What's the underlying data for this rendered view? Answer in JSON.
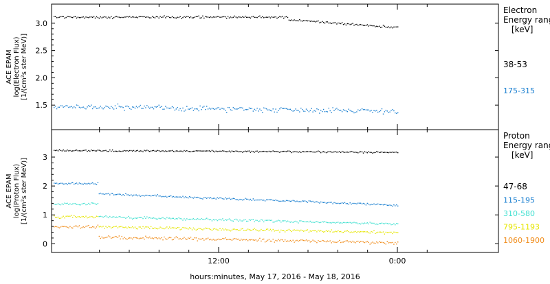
{
  "chart_data": [
    {
      "type": "scatter",
      "ylabel": [
        "ACE EPAM",
        "log(Electron Flux)",
        "[1/(cm²s ster MeV)]"
      ],
      "yticks": [
        1.5,
        2.0,
        2.5,
        3.0
      ],
      "ylim": [
        1.05,
        3.35
      ],
      "legend_title": [
        "Electron",
        "Energy ranges",
        "[keV]"
      ],
      "series": [
        {
          "name": "38-53",
          "color": "#000000",
          "base": 3.12,
          "end": 2.93,
          "noise": 0.03,
          "drop_at": 0.68,
          "drop": 0.05
        },
        {
          "name": "175-315",
          "color": "#1a7fd0",
          "base": 1.48,
          "end": 1.4,
          "noise": 0.07,
          "drop_at": null,
          "drop": 0
        }
      ]
    },
    {
      "type": "scatter",
      "ylabel": [
        "ACE EPAM",
        "log(Proton Flux)",
        "[1/(cm²s ster MeV)]"
      ],
      "yticks": [
        0,
        1,
        2,
        3
      ],
      "ylim": [
        -0.3,
        3.95
      ],
      "legend_title": [
        "Proton",
        "Energy ranges",
        "[keV]"
      ],
      "series": [
        {
          "name": "47-68",
          "color": "#000000",
          "base": 3.25,
          "end": 3.18,
          "noise": 0.04,
          "drop_at": null,
          "drop": 0
        },
        {
          "name": "115-195",
          "color": "#1a7fd0",
          "base": 2.1,
          "end": 1.35,
          "noise": 0.05,
          "drop_at": 0.13,
          "drop": 0.35
        },
        {
          "name": "310-580",
          "color": "#40e0d0",
          "base": 1.4,
          "end": 0.7,
          "noise": 0.06,
          "drop_at": 0.13,
          "drop": 0.45
        },
        {
          "name": "795-1193",
          "color": "#e6e600",
          "base": 0.95,
          "end": 0.4,
          "noise": 0.07,
          "drop_at": 0.13,
          "drop": 0.35
        },
        {
          "name": "1060-1900",
          "color": "#f08c1a",
          "base": 0.6,
          "end": 0.05,
          "noise": 0.08,
          "drop_at": 0.13,
          "drop": 0.35
        }
      ]
    }
  ],
  "x_axis": {
    "ticks": [
      "12:00",
      "0:00"
    ],
    "label": "hours:minutes, May 17, 2016 - May 18, 2016"
  }
}
